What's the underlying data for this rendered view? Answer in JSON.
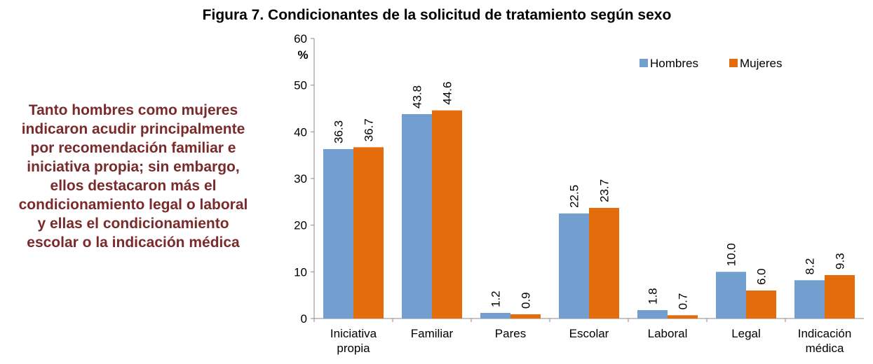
{
  "chart_data": {
    "type": "bar",
    "title": "Figura 7. Condicionantes de la solicitud de tratamiento según sexo",
    "annotation": "Tanto hombres como mujeres indicaron acudir principalmente por recomendación familiar e iniciativa propia; sin embargo, ellos destacaron más el condicionamiento legal o laboral y ellas el condicionamiento escolar o la indicación médica",
    "ylabel": "%",
    "categories": [
      "Iniciativa propia",
      "Familiar",
      "Pares",
      "Escolar",
      "Laboral",
      "Legal",
      "Indicación médica"
    ],
    "series": [
      {
        "name": "Hombres",
        "color": "#729fcf",
        "values": [
          36.3,
          43.8,
          1.2,
          22.5,
          1.8,
          10.0,
          8.2
        ],
        "value_labels": [
          "36.3",
          "43.8",
          "1.2",
          "22.5",
          "1.8",
          "10.0",
          "8.2"
        ]
      },
      {
        "name": "Mujeres",
        "color": "#e46c0a",
        "values": [
          36.7,
          44.6,
          0.9,
          23.7,
          0.7,
          6.0,
          9.3
        ],
        "value_labels": [
          "36.7",
          "44.6",
          "0.9",
          "23.7",
          "0.7",
          "6.0",
          "9.3"
        ]
      }
    ],
    "ylim": [
      0,
      60
    ],
    "yticks": [
      0,
      10,
      20,
      30,
      40,
      50,
      60
    ],
    "grid": false,
    "legend": "top-right"
  }
}
